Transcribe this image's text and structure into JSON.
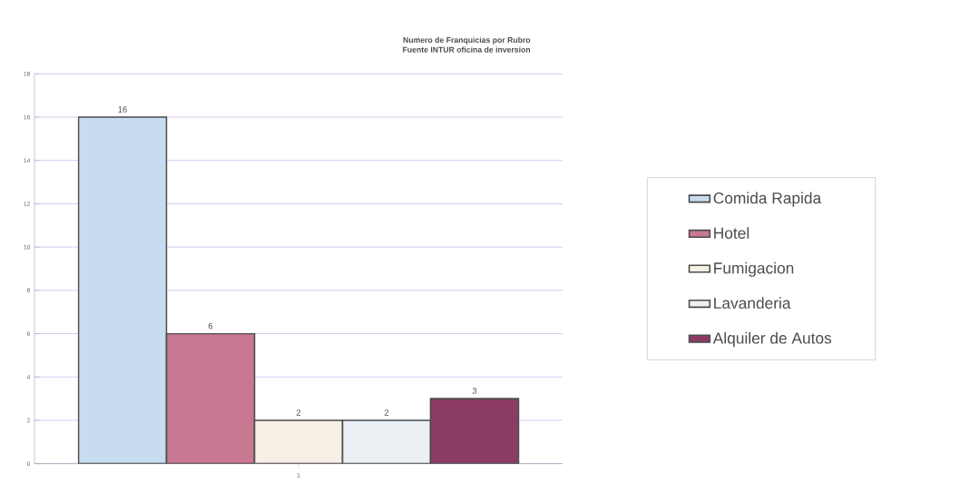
{
  "chart_data": {
    "type": "bar",
    "title": "Numero de Franquicias por Rubro",
    "subtitle": "Fuente INTUR oficina de inversion",
    "categories": [
      "1"
    ],
    "series": [
      {
        "name": "Comida Rapida",
        "color": "#c8dcf0",
        "values": [
          16
        ]
      },
      {
        "name": "Hotel",
        "color": "#c87890",
        "values": [
          6
        ]
      },
      {
        "name": "Fumigacion",
        "color": "#f5efe6",
        "values": [
          2
        ]
      },
      {
        "name": "Lavanderia",
        "color": "#ebf0f5",
        "values": [
          2
        ]
      },
      {
        "name": "Alquiler de Autos",
        "color": "#8c3c64",
        "values": [
          3
        ]
      }
    ],
    "ylim": [
      0,
      18
    ],
    "yticks": [
      0,
      2,
      4,
      6,
      8,
      10,
      12,
      14,
      16,
      18
    ],
    "grid": "y",
    "legend": "right",
    "data_labels": true
  }
}
